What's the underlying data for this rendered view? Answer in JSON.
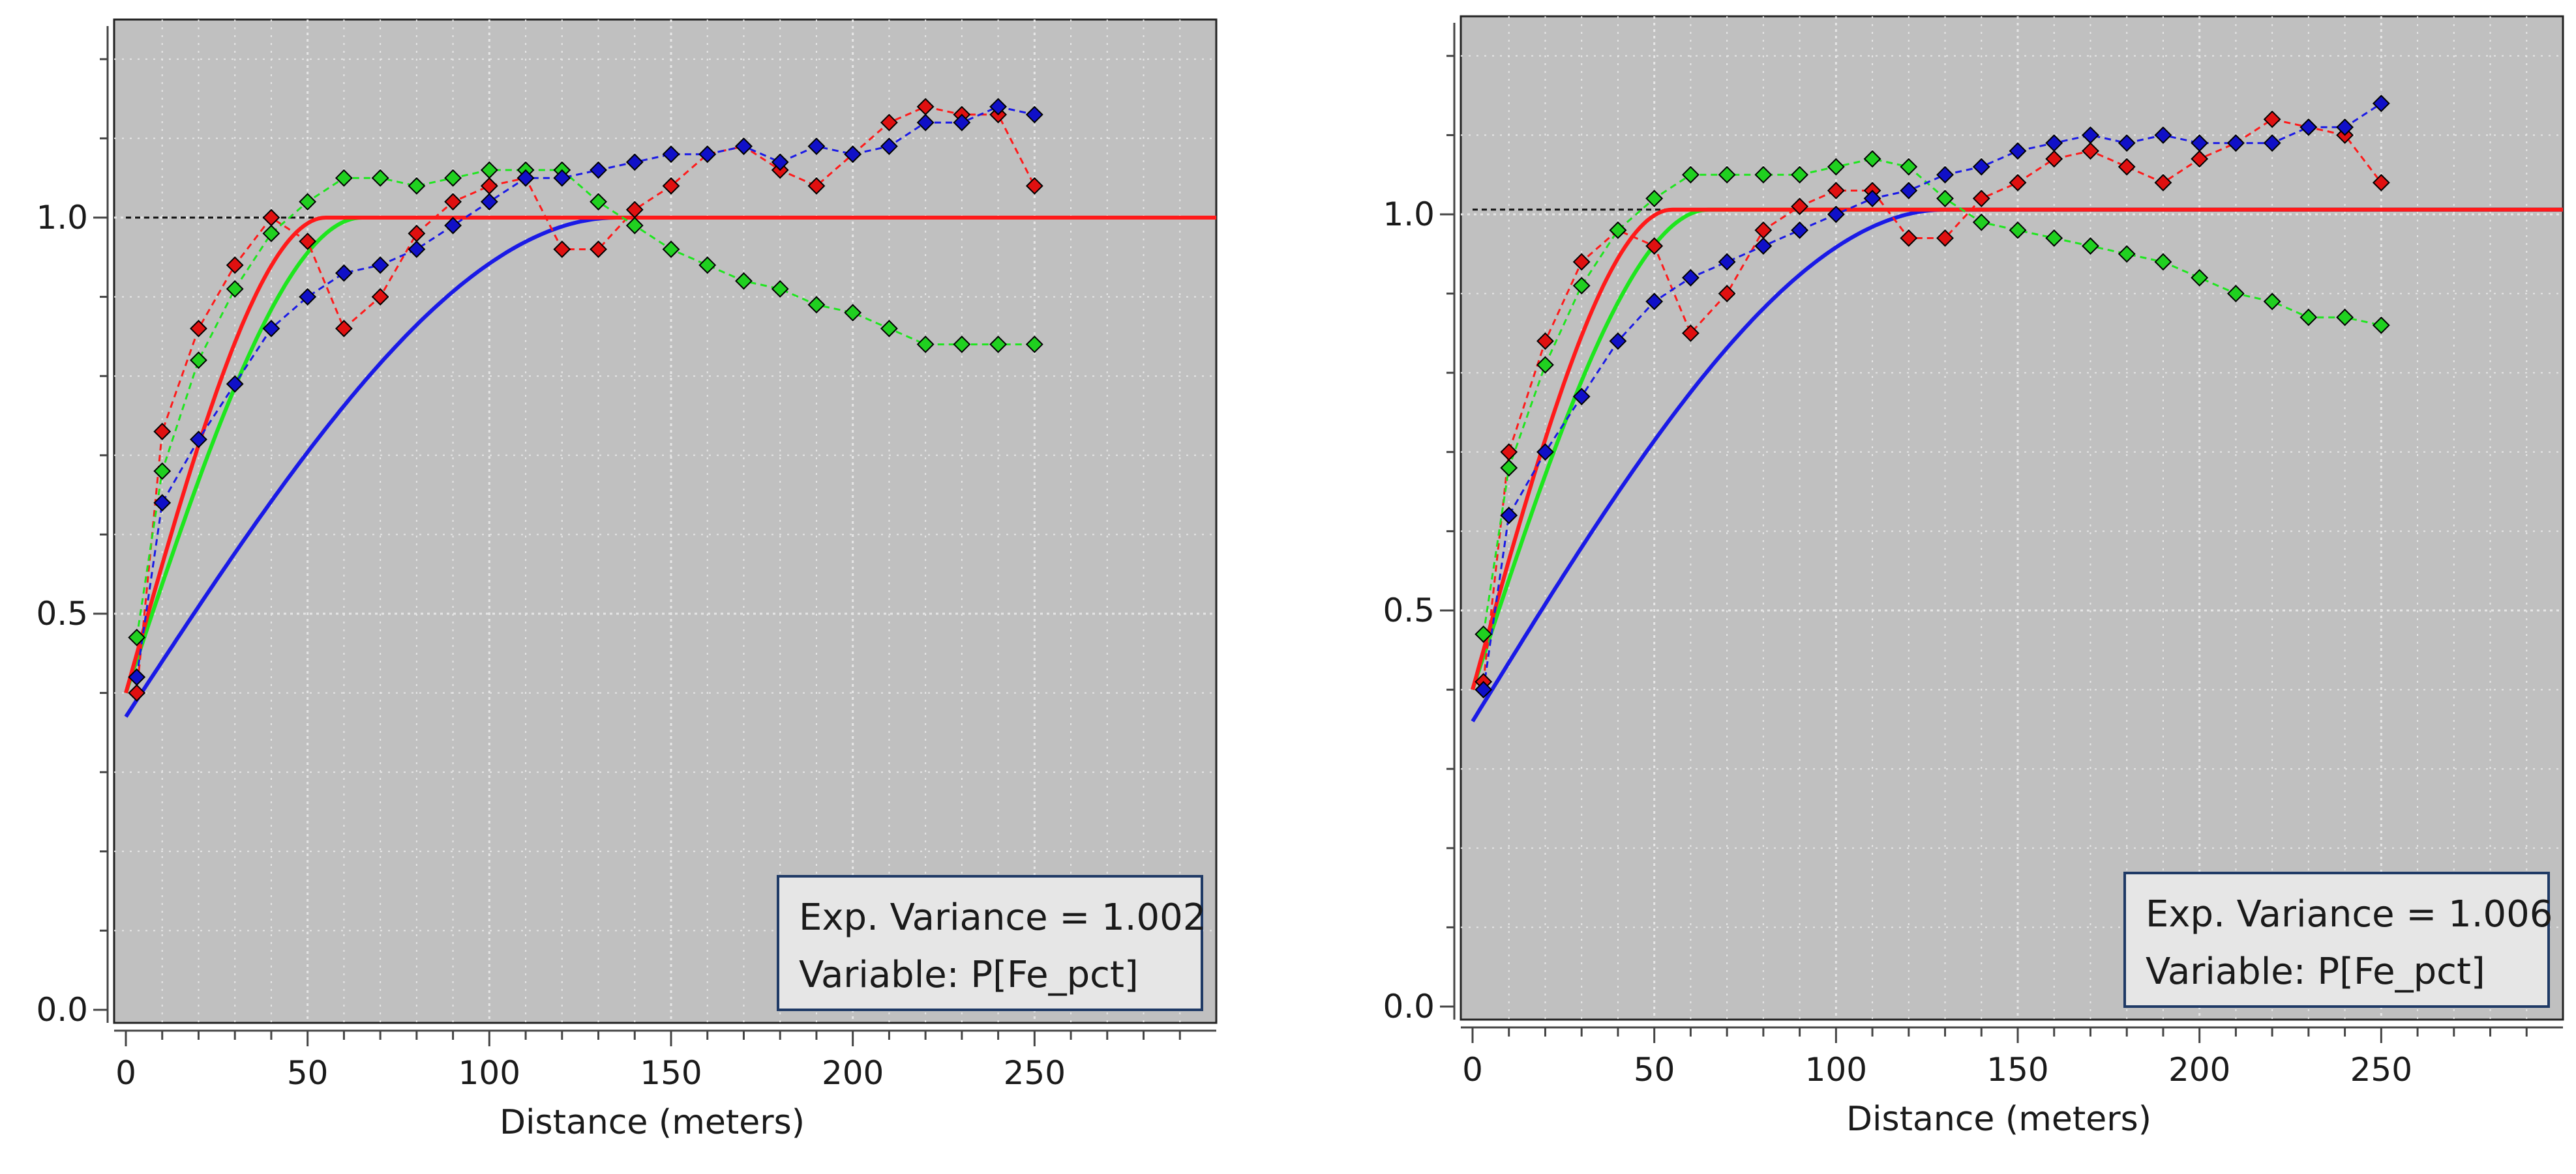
{
  "colors": {
    "plot_bg": "#c0c0c0",
    "grid": "#e6e6e6",
    "red": "#ff1a1a",
    "green": "#1ee61e",
    "blue": "#1a1ae6",
    "marker_red": "#e01010",
    "marker_green": "#20d020",
    "marker_blue": "#1010c8",
    "sill_line": "#111111",
    "legend_bg": "#e6e6e6",
    "legend_border": "#1f3a66"
  },
  "chart_data": [
    {
      "type": "line",
      "xlabel": "Distance (meters)",
      "ylabel": "",
      "xlim": [
        0,
        300
      ],
      "ylim": [
        0,
        1.25
      ],
      "x_ticks": [
        0,
        50,
        100,
        150,
        200,
        250
      ],
      "x_tick_labels": [
        "0",
        "50",
        "100",
        "150",
        "200",
        "250"
      ],
      "y_ticks": [
        0.0,
        0.5,
        1.0
      ],
      "y_tick_labels": [
        "0.0",
        "0.5",
        "1.0"
      ],
      "sill": 1.0,
      "legend": {
        "line1": "Exp. Variance = 1.002",
        "line2": "Variable: P[Fe_pct]",
        "position": "bottom-right"
      },
      "experimental": [
        {
          "name": "red",
          "x": [
            3,
            10,
            20,
            30,
            40,
            50,
            60,
            70,
            80,
            90,
            100,
            110,
            120,
            130,
            140,
            150,
            160,
            170,
            180,
            190,
            200,
            210,
            220,
            230,
            240,
            250
          ],
          "y": [
            0.4,
            0.73,
            0.86,
            0.94,
            1.0,
            0.97,
            0.86,
            0.9,
            0.98,
            1.02,
            1.04,
            1.05,
            0.96,
            0.96,
            1.01,
            1.04,
            1.08,
            1.09,
            1.06,
            1.04,
            1.08,
            1.12,
            1.14,
            1.13,
            1.13,
            1.04
          ]
        },
        {
          "name": "green",
          "x": [
            3,
            10,
            20,
            30,
            40,
            50,
            60,
            70,
            80,
            90,
            100,
            110,
            120,
            130,
            140,
            150,
            160,
            170,
            180,
            190,
            200,
            210,
            220,
            230,
            240,
            250
          ],
          "y": [
            0.47,
            0.68,
            0.82,
            0.91,
            0.98,
            1.02,
            1.05,
            1.05,
            1.04,
            1.05,
            1.06,
            1.06,
            1.06,
            1.02,
            0.99,
            0.96,
            0.94,
            0.92,
            0.91,
            0.89,
            0.88,
            0.86,
            0.84,
            0.84,
            0.84,
            0.84
          ]
        },
        {
          "name": "blue",
          "x": [
            3,
            10,
            20,
            30,
            40,
            50,
            60,
            70,
            80,
            90,
            100,
            110,
            120,
            130,
            140,
            150,
            160,
            170,
            180,
            190,
            200,
            210,
            220,
            230,
            240,
            250
          ],
          "y": [
            0.42,
            0.64,
            0.72,
            0.79,
            0.86,
            0.9,
            0.93,
            0.94,
            0.96,
            0.99,
            1.02,
            1.05,
            1.05,
            1.06,
            1.07,
            1.08,
            1.08,
            1.09,
            1.07,
            1.09,
            1.08,
            1.09,
            1.12,
            1.12,
            1.14,
            1.13
          ]
        }
      ],
      "models": [
        {
          "name": "red",
          "nugget": 0.4,
          "sill": 1.0,
          "range": 55
        },
        {
          "name": "green",
          "nugget": 0.4,
          "sill": 1.0,
          "range": 65
        },
        {
          "name": "blue",
          "nugget": 0.37,
          "sill": 1.0,
          "range": 135
        }
      ]
    },
    {
      "type": "line",
      "xlabel": "Distance (meters)",
      "ylabel": "",
      "xlim": [
        0,
        300
      ],
      "ylim": [
        0,
        1.25
      ],
      "x_ticks": [
        0,
        50,
        100,
        150,
        200,
        250
      ],
      "x_tick_labels": [
        "0",
        "50",
        "100",
        "150",
        "200",
        "250"
      ],
      "y_ticks": [
        0.0,
        0.5,
        1.0
      ],
      "y_tick_labels": [
        "0.0",
        "0.5",
        "1.0"
      ],
      "sill": 1.006,
      "legend": {
        "line1": "Exp. Variance = 1.006",
        "line2": "Variable: P[Fe_pct]",
        "position": "bottom-right"
      },
      "experimental": [
        {
          "name": "red",
          "x": [
            3,
            10,
            20,
            30,
            40,
            50,
            60,
            70,
            80,
            90,
            100,
            110,
            120,
            130,
            140,
            150,
            160,
            170,
            180,
            190,
            200,
            210,
            220,
            230,
            240,
            250
          ],
          "y": [
            0.41,
            0.7,
            0.84,
            0.94,
            0.98,
            0.96,
            0.85,
            0.9,
            0.98,
            1.01,
            1.03,
            1.03,
            0.97,
            0.97,
            1.02,
            1.04,
            1.07,
            1.08,
            1.06,
            1.04,
            1.07,
            1.09,
            1.12,
            1.11,
            1.1,
            1.04
          ]
        },
        {
          "name": "green",
          "x": [
            3,
            10,
            20,
            30,
            40,
            50,
            60,
            70,
            80,
            90,
            100,
            110,
            120,
            130,
            140,
            150,
            160,
            170,
            180,
            190,
            200,
            210,
            220,
            230,
            240,
            250
          ],
          "y": [
            0.47,
            0.68,
            0.81,
            0.91,
            0.98,
            1.02,
            1.05,
            1.05,
            1.05,
            1.05,
            1.06,
            1.07,
            1.06,
            1.02,
            0.99,
            0.98,
            0.97,
            0.96,
            0.95,
            0.94,
            0.92,
            0.9,
            0.89,
            0.87,
            0.87,
            0.86
          ]
        },
        {
          "name": "blue",
          "x": [
            3,
            10,
            20,
            30,
            40,
            50,
            60,
            70,
            80,
            90,
            100,
            110,
            120,
            130,
            140,
            150,
            160,
            170,
            180,
            190,
            200,
            210,
            220,
            230,
            240,
            250
          ],
          "y": [
            0.4,
            0.62,
            0.7,
            0.77,
            0.84,
            0.89,
            0.92,
            0.94,
            0.96,
            0.98,
            1.0,
            1.02,
            1.03,
            1.05,
            1.06,
            1.08,
            1.09,
            1.1,
            1.09,
            1.1,
            1.09,
            1.09,
            1.09,
            1.11,
            1.11,
            1.14
          ]
        }
      ],
      "models": [
        {
          "name": "red",
          "nugget": 0.4,
          "sill": 1.006,
          "range": 55
        },
        {
          "name": "green",
          "nugget": 0.4,
          "sill": 1.006,
          "range": 65
        },
        {
          "name": "blue",
          "nugget": 0.36,
          "sill": 1.006,
          "range": 130
        }
      ]
    }
  ]
}
